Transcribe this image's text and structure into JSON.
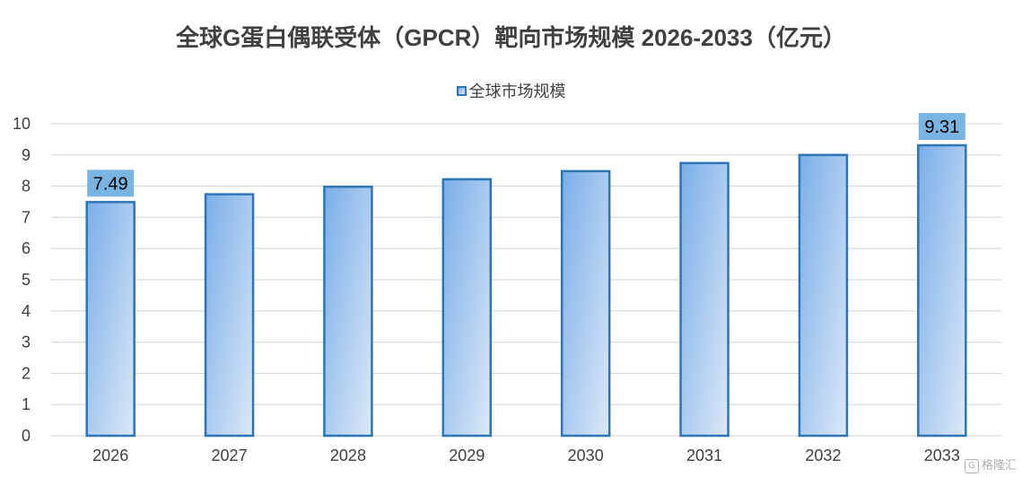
{
  "chart_data": {
    "type": "bar",
    "title": "全球G蛋白偶联受体（GPCR）靶向市场规模 2026-2033（亿元）",
    "categories": [
      "2026",
      "2027",
      "2028",
      "2029",
      "2030",
      "2031",
      "2032",
      "2033"
    ],
    "series": [
      {
        "name": "全球市场规模",
        "values": [
          7.49,
          7.74,
          7.98,
          8.22,
          8.48,
          8.74,
          9.0,
          9.31
        ]
      }
    ],
    "data_labels": [
      {
        "category": "2026",
        "text": "7.49"
      },
      {
        "category": "2033",
        "text": "9.31"
      }
    ],
    "ylim": [
      0,
      10
    ],
    "yticks": [
      0,
      1,
      2,
      3,
      4,
      5,
      6,
      7,
      8,
      9,
      10
    ],
    "grid": true,
    "legend_position": "top"
  },
  "colors": {
    "bar_border": "#2e75b6",
    "bar_fill_dark": "#7aaee9",
    "bar_fill_light": "#dbe8f8",
    "label_box": "#7ab4e3",
    "grid": "#d9d9d9",
    "text": "#404040"
  },
  "watermark": {
    "text": "格隆汇",
    "icon": "g-logo-icon"
  }
}
